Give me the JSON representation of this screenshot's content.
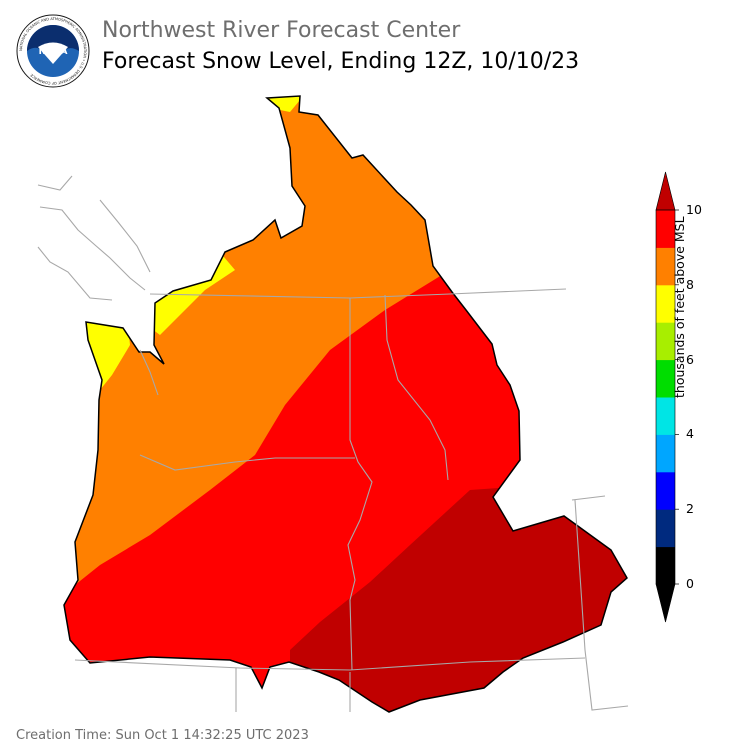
{
  "header": {
    "org_name": "Northwest River Forecast Center",
    "title": "Forecast Snow Level, Ending 12Z, 10/10/23"
  },
  "logo": {
    "center_text": "NOAA",
    "ring_text": "NATIONAL OCEANIC AND ATMOSPHERIC ADMINISTRATION • U.S. DEPARTMENT OF COMMERCE"
  },
  "legend": {
    "label": "thousands of feet above MSL",
    "ticks": [
      "0",
      "2",
      "4",
      "6",
      "8",
      "10"
    ],
    "bands": [
      {
        "range": "0-1",
        "color": "#000000"
      },
      {
        "range": "1-2",
        "color": "#002a7f"
      },
      {
        "range": "2-3",
        "color": "#0000ff"
      },
      {
        "range": "3-4",
        "color": "#00a6ff"
      },
      {
        "range": "4-5",
        "color": "#00e5e5"
      },
      {
        "range": "5-6",
        "color": "#00dd00"
      },
      {
        "range": "6-7",
        "color": "#a8ee00"
      },
      {
        "range": "7-8",
        "color": "#ffff00"
      },
      {
        "range": "8-9",
        "color": "#ff8000"
      },
      {
        "range": "9-10",
        "color": "#ff0000"
      },
      {
        "range": ">10",
        "color": "#c00000"
      }
    ],
    "under_color": "#000000",
    "over_color": "#c00000"
  },
  "map": {
    "region_colors": {
      "dark_red": "#c00000",
      "red": "#ff0000",
      "orange": "#ff8000",
      "yellow": "#ffff00",
      "boundary": "#a8a8a8"
    }
  },
  "footer": {
    "creation_time": "Creation Time: Sun Oct 1 14:32:25 UTC 2023"
  }
}
